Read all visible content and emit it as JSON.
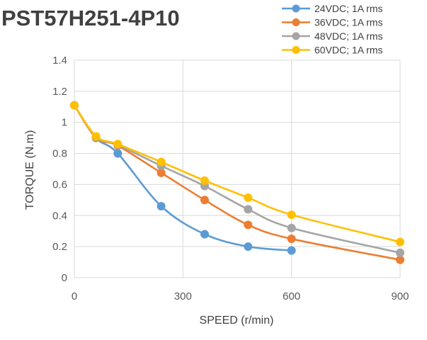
{
  "chart_data": {
    "type": "line",
    "title": "PST57H251-4P10",
    "xlabel": "SPEED (r/min)",
    "ylabel": "TORQUE (N.m)",
    "xlim": [
      0,
      900
    ],
    "ylim": [
      0,
      1.4
    ],
    "xticks": [
      0,
      300,
      600,
      900
    ],
    "yticks": [
      0,
      0.2,
      0.4,
      0.6,
      0.8,
      1,
      1.2,
      1.4
    ],
    "grid": true,
    "legend": "top-right",
    "series": [
      {
        "name": "24VDC; 1A rms",
        "color": "#5b9bd5",
        "x": [
          0,
          60,
          120,
          240,
          360,
          480,
          600
        ],
        "y": [
          1.11,
          0.9,
          0.8,
          0.46,
          0.28,
          0.2,
          0.175
        ]
      },
      {
        "name": "36VDC; 1A rms",
        "color": "#ed7d31",
        "x": [
          0,
          60,
          120,
          240,
          360,
          480,
          600,
          900
        ],
        "y": [
          1.11,
          0.9,
          0.85,
          0.675,
          0.5,
          0.34,
          0.25,
          0.115
        ]
      },
      {
        "name": "48VDC; 1A rms",
        "color": "#a5a5a5",
        "x": [
          0,
          60,
          120,
          240,
          360,
          480,
          600,
          900
        ],
        "y": [
          1.11,
          0.905,
          0.855,
          0.72,
          0.59,
          0.44,
          0.32,
          0.16
        ]
      },
      {
        "name": "60VDC; 1A rms",
        "color": "#ffc000",
        "x": [
          0,
          60,
          120,
          240,
          360,
          480,
          600,
          900
        ],
        "y": [
          1.11,
          0.91,
          0.86,
          0.745,
          0.625,
          0.515,
          0.405,
          0.23
        ]
      }
    ]
  }
}
